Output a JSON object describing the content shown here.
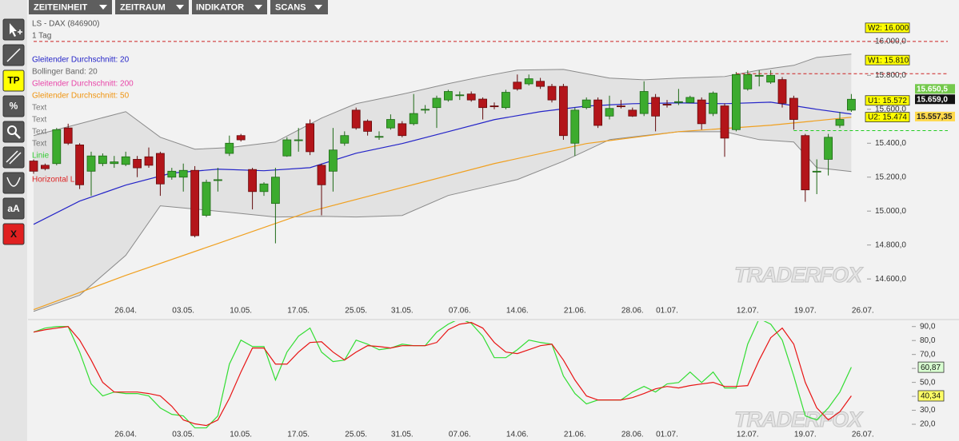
{
  "menu": [
    "ZEITEINHEIT",
    "ZEITRAUM",
    "INDIKATOR",
    "SCANS"
  ],
  "toolbar": {
    "tp": "TP",
    "percent": "%",
    "text": "aA",
    "close": "X"
  },
  "chart_data": [
    {
      "type": "candlestick",
      "title": "LS - DAX (846900)",
      "subtitle": "1 Tag",
      "legend": [
        {
          "name": "Gleitender Durchschnitt: 20",
          "color": "#2424c8"
        },
        {
          "name": "Bollinger Band: 20",
          "color": "#666666"
        },
        {
          "name": "Gleitender Durchschnitt: 200",
          "color": "#e845a8"
        },
        {
          "name": "Gleitender Durchschnitt: 50",
          "color": "#f0940f"
        },
        {
          "name": "Text",
          "color": "#777777"
        },
        {
          "name": "Text",
          "color": "#777777"
        },
        {
          "name": "Text",
          "color": "#777777"
        },
        {
          "name": "Text",
          "color": "#777777"
        },
        {
          "name": "Linie",
          "color": "#33cc33"
        },
        {
          "name": "Horizontal L",
          "color": "#dd2222"
        }
      ],
      "categories": [
        null,
        null,
        null,
        null,
        null,
        null,
        null,
        null,
        "26.04.",
        null,
        null,
        null,
        null,
        "03.05.",
        null,
        null,
        null,
        null,
        "10.05.",
        null,
        null,
        null,
        null,
        "17.05.",
        null,
        null,
        null,
        null,
        "25.05.",
        null,
        null,
        null,
        "31.05.",
        null,
        null,
        null,
        null,
        "07.06.",
        null,
        null,
        null,
        null,
        "14.06.",
        null,
        null,
        null,
        null,
        "21.06.",
        null,
        null,
        null,
        null,
        "28.06.",
        null,
        null,
        "01.07.",
        null,
        null,
        null,
        null,
        null,
        null,
        "12.07.",
        null,
        null,
        null,
        null,
        "19.07.",
        null,
        null,
        null,
        null,
        "26.07."
      ],
      "open": [
        15295,
        15270,
        15280,
        15490,
        15390,
        15235,
        15280,
        15280,
        15275,
        15305,
        15320,
        15340,
        15200,
        15200,
        15240,
        14975,
        15180,
        15340,
        15445,
        15245,
        15115,
        15045,
        15325,
        15415,
        15515,
        15270,
        15235,
        15400,
        15595,
        15530,
        15435,
        15490,
        15515,
        15515,
        15595,
        15610,
        15655,
        15680,
        15690,
        15660,
        15620,
        15610,
        15760,
        15750,
        15765,
        15735,
        15735,
        15400,
        15610,
        15655,
        15560,
        15620,
        15595,
        15575,
        15670,
        15630,
        15640,
        15640,
        15655,
        15575,
        15620,
        15480,
        15720,
        15795,
        15760,
        15775,
        15665,
        15445,
        15230,
        15305,
        15505,
        15595,
        null
      ],
      "high": [
        15305,
        15280,
        15490,
        15515,
        15400,
        15350,
        15340,
        15325,
        15350,
        15325,
        15375,
        15350,
        15255,
        15280,
        15265,
        15185,
        15255,
        15445,
        15455,
        15255,
        15170,
        15255,
        15435,
        15490,
        15540,
        15280,
        15490,
        15470,
        15610,
        15540,
        15470,
        15570,
        15530,
        15690,
        15625,
        15680,
        15715,
        15705,
        15705,
        15670,
        15640,
        15715,
        15805,
        15805,
        15785,
        15750,
        15750,
        15610,
        15670,
        15670,
        15680,
        15655,
        15610,
        15765,
        15690,
        15655,
        15720,
        15680,
        15670,
        15705,
        15635,
        15820,
        15830,
        15830,
        15830,
        15790,
        15680,
        15455,
        15305,
        15455,
        15585,
        15690,
        null
      ],
      "low": [
        15220,
        15240,
        15270,
        15390,
        15130,
        15090,
        15265,
        15255,
        15265,
        15200,
        15255,
        15090,
        15185,
        15115,
        14845,
        14965,
        15115,
        15325,
        15410,
        15010,
        15090,
        14810,
        15320,
        15350,
        15330,
        14975,
        15115,
        15385,
        15480,
        15445,
        15420,
        15480,
        15435,
        15505,
        15575,
        15490,
        15645,
        15655,
        15645,
        15540,
        15600,
        15600,
        15710,
        15740,
        15720,
        15640,
        15420,
        15325,
        15600,
        15490,
        15540,
        15605,
        15555,
        15560,
        15470,
        15610,
        15625,
        15635,
        15480,
        15560,
        15320,
        15470,
        15710,
        15735,
        15750,
        15610,
        15480,
        15055,
        15100,
        15210,
        15490,
        15585,
        null
      ],
      "close": [
        15235,
        15250,
        15480,
        15400,
        15155,
        15325,
        15325,
        15290,
        15320,
        15255,
        15270,
        15160,
        15235,
        15240,
        14855,
        15170,
        15185,
        15400,
        15420,
        15115,
        15160,
        15200,
        15420,
        15420,
        15350,
        15155,
        15360,
        15445,
        15490,
        15470,
        15440,
        15540,
        15445,
        15575,
        15600,
        15665,
        15705,
        15685,
        15655,
        15610,
        15615,
        15700,
        15720,
        15780,
        15735,
        15655,
        15445,
        15595,
        15655,
        15505,
        15605,
        15615,
        15560,
        15705,
        15560,
        15625,
        15645,
        15670,
        15515,
        15695,
        15430,
        15805,
        15805,
        15800,
        15800,
        15635,
        15540,
        15125,
        15235,
        15435,
        15540,
        15659,
        null
      ],
      "up_color": "#3cab2e",
      "up_border": "#1f6a17",
      "down_color": "#b3151a",
      "down_border": "#640a0c",
      "band": {
        "color": "#8a8a8a",
        "fill": "#e2e2e2",
        "x": [
          0,
          4,
          8,
          11,
          14,
          17,
          21,
          25,
          28,
          32,
          36,
          39,
          42,
          46,
          50,
          53,
          56,
          60,
          63,
          66,
          68,
          71
        ],
        "upper": [
          15445,
          15515,
          15586,
          15435,
          15365,
          15374,
          15407,
          15548,
          15633,
          15689,
          15751,
          15793,
          15831,
          15835,
          15784,
          15774,
          15784,
          15793,
          15831,
          15859,
          15906,
          15925
        ],
        "lower": [
          14409,
          14504,
          14739,
          15031,
          15012,
          14993,
          14965,
          14969,
          14965,
          14974,
          15092,
          15139,
          15186,
          15294,
          15421,
          15445,
          15468,
          15468,
          15421,
          15407,
          15256,
          15233
        ]
      },
      "overlays": [
        {
          "color": "#2424c8",
          "x": [
            0,
            4,
            8,
            12,
            16,
            20,
            24,
            28,
            32,
            36,
            40,
            44,
            48,
            52,
            56,
            60,
            64,
            68,
            71
          ],
          "values": [
            14922,
            15059,
            15153,
            15224,
            15247,
            15238,
            15256,
            15341,
            15398,
            15468,
            15539,
            15586,
            15619,
            15633,
            15638,
            15633,
            15642,
            15600,
            15572
          ]
        },
        {
          "color": "#f0a020",
          "x": [
            0,
            8,
            16,
            24,
            32,
            40,
            48,
            56,
            64,
            71
          ],
          "values": [
            14419,
            14621,
            14809,
            14998,
            15139,
            15280,
            15398,
            15468,
            15506,
            15553
          ]
        }
      ],
      "levels": [
        {
          "label": "W2: 16.000",
          "value": 16000,
          "color": "#cc2222",
          "start_index": 0
        },
        {
          "label": "W1: 15.810",
          "value": 15810,
          "color": "#cc2222",
          "start_index": 61
        },
        {
          "label": "U1: 15.572",
          "value": 15572,
          "color": "#cc2222"
        },
        {
          "label": "U2: 15.474",
          "value": 15474,
          "color": "#22cc22",
          "start_index": 66
        }
      ],
      "price_badges": [
        {
          "value": 15650.5,
          "label": "15.650,5",
          "color": "#74c94c",
          "text_color": "#ffffff"
        },
        {
          "value": 15659,
          "label": "15.659,0",
          "color": "#111111",
          "text_color": "#ffffff"
        },
        {
          "value": 15557.35,
          "label": "15.557,35",
          "color": "#ffd84a",
          "text_color": "#222222"
        }
      ],
      "ylim": [
        14370,
        16150
      ],
      "yticks": [
        {
          "value": 14600,
          "label": "14.600,0"
        },
        {
          "value": 14800,
          "label": "14.800,0"
        },
        {
          "value": 15000,
          "label": "15.000,0"
        },
        {
          "value": 15200,
          "label": "15.200,0"
        },
        {
          "value": 15400,
          "label": "15.400,0"
        },
        {
          "value": 15600,
          "label": "15.600,0"
        },
        {
          "value": 15800,
          "label": "15.800,0"
        },
        {
          "value": 16000,
          "label": "16.000,0"
        }
      ],
      "grid": false,
      "watermark": "TRADERFOX"
    },
    {
      "type": "line",
      "series": [
        {
          "color": "#33dd33",
          "last_label": "60,87",
          "badge_color": "#d8ffd0",
          "values": [
            86,
            88.9,
            90,
            90,
            71.7,
            48.9,
            40.3,
            43.1,
            42,
            42,
            40.3,
            31.7,
            27.1,
            26,
            17.4,
            17.4,
            26,
            63.1,
            80.3,
            75.7,
            75.7,
            51.7,
            71.7,
            83.1,
            88.9,
            71.7,
            64.9,
            66,
            80.3,
            77.4,
            73.4,
            74.6,
            77.4,
            76.3,
            76.3,
            86,
            91.7,
            95.7,
            92.3,
            83.1,
            67.7,
            67.7,
            73.4,
            80.3,
            78.6,
            77.4,
            54.6,
            42,
            34.6,
            37.4,
            37.4,
            37.4,
            43.1,
            47.1,
            43.1,
            48.9,
            49.9,
            57.4,
            49.9,
            57.4,
            46,
            46,
            77.4,
            95.7,
            91.7,
            80.3,
            54.6,
            26,
            23.1,
            31.7,
            43.1,
            60.87,
            null
          ]
        },
        {
          "color": "#e81414",
          "last_label": "40,34",
          "badge_color": "#ffff66",
          "values": [
            86,
            87.7,
            88.9,
            90,
            80.3,
            66,
            50,
            43.1,
            43.1,
            43.1,
            42,
            40.3,
            32.9,
            23.1,
            20.3,
            19.1,
            23.1,
            38.6,
            57.4,
            74.6,
            74.6,
            63.1,
            63.1,
            71.7,
            78.6,
            79.1,
            71.7,
            66,
            71.7,
            76.3,
            75.7,
            74.6,
            76.3,
            76.3,
            76.3,
            78.6,
            87.7,
            91.7,
            92.9,
            88.9,
            78.6,
            71.7,
            70.6,
            73.4,
            76.3,
            77.4,
            66,
            51.7,
            40.3,
            37.4,
            37.4,
            37.4,
            39.1,
            42,
            45.4,
            47.1,
            46,
            47.7,
            48.9,
            50,
            47.1,
            47.1,
            47.7,
            66,
            82,
            88.9,
            77.4,
            50,
            31.7,
            23.1,
            28.9,
            40.34,
            null
          ]
        }
      ],
      "ylim": [
        8,
        95
      ],
      "yticks": [
        {
          "value": 20,
          "label": "20,0"
        },
        {
          "value": 30,
          "label": "30,0"
        },
        {
          "value": 40,
          "label": "40,0"
        },
        {
          "value": 50,
          "label": "50,0"
        },
        {
          "value": 60,
          "label": "60,0"
        },
        {
          "value": 70,
          "label": "70,0"
        },
        {
          "value": 80,
          "label": "80,0"
        },
        {
          "value": 90,
          "label": "90,0"
        }
      ],
      "grid": false,
      "watermark": "TRADERFOX"
    }
  ]
}
